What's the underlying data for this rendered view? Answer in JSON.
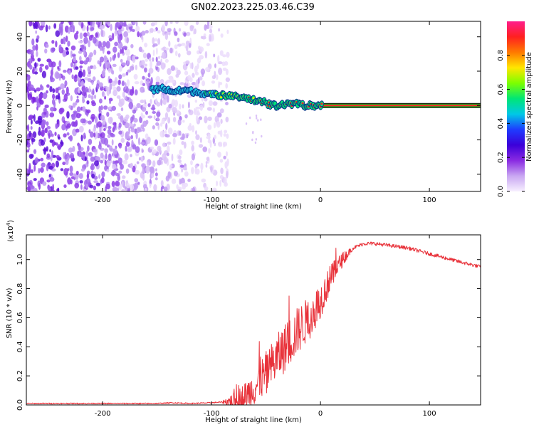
{
  "figure_title": "GN02.2023.225.03.46.C39",
  "colors": {
    "snr_line": "#e8323a",
    "spectral_line": "#1a9e1a",
    "colormap": [
      "#f7f0ff",
      "#c9a7f2",
      "#8a2be2",
      "#3b00d9",
      "#1e3cff",
      "#00c8e6",
      "#00e676",
      "#7cff00",
      "#ffe600",
      "#ff7a00",
      "#ff2020",
      "#ff1e8c"
    ]
  },
  "chart_data": [
    {
      "type": "heatmap",
      "title": "",
      "xlabel": "Height of straight line (km)",
      "ylabel": "Frequency (Hz)",
      "xlim": [
        -270,
        147
      ],
      "ylim": [
        -50,
        49
      ],
      "xticks": [
        -200,
        -100,
        0,
        100
      ],
      "xtick_labels": [
        "-200",
        "-100",
        "0",
        "100"
      ],
      "yticks": [
        -40,
        -20,
        0,
        20,
        40
      ],
      "ytick_labels": [
        "-40",
        "-20",
        "0",
        "20",
        "40"
      ],
      "noise_region": [
        -270,
        -95
      ],
      "spectral_line_points": [
        {
          "x": -155,
          "y": 9
        },
        {
          "x": -145,
          "y": 10
        },
        {
          "x": -135,
          "y": 8
        },
        {
          "x": -125,
          "y": 9
        },
        {
          "x": -115,
          "y": 8
        },
        {
          "x": -105,
          "y": 7
        },
        {
          "x": -95,
          "y": 6
        },
        {
          "x": -85,
          "y": 6
        },
        {
          "x": -75,
          "y": 5
        },
        {
          "x": -68,
          "y": 4
        },
        {
          "x": -60,
          "y": 3
        },
        {
          "x": -52,
          "y": 2
        },
        {
          "x": -45,
          "y": 0
        },
        {
          "x": -38,
          "y": 0
        },
        {
          "x": -30,
          "y": 1
        },
        {
          "x": -22,
          "y": 1
        },
        {
          "x": -15,
          "y": 0
        },
        {
          "x": -8,
          "y": 0
        },
        {
          "x": 0,
          "y": 0
        },
        {
          "x": 147,
          "y": 0
        }
      ],
      "colorbar": {
        "label": "Normalized spectral amplitude",
        "range": [
          0.0,
          1.0
        ],
        "ticks": [
          0.0,
          0.2,
          0.4,
          0.6,
          0.8
        ],
        "tick_labels": [
          "0.0",
          "0.2",
          "0.4",
          "0.6",
          "0.8"
        ]
      }
    },
    {
      "type": "line",
      "title": "",
      "xlabel": "Height of straight line (km)",
      "ylabel": "SNR (10 * v/v)",
      "y_scale_label": "(x10",
      "y_scale_exponent": "4",
      "y_scale_suffix": ")",
      "xlim": [
        -270,
        147
      ],
      "ylim": [
        0.0,
        1.17
      ],
      "xticks": [
        -200,
        -100,
        0,
        100
      ],
      "xtick_labels": [
        "-200",
        "-100",
        "0",
        "100"
      ],
      "yticks": [
        0.0,
        0.2,
        0.4,
        0.6,
        0.8,
        1.0
      ],
      "ytick_labels": [
        "0.0",
        "0.2",
        "0.4",
        "0.6",
        "0.8",
        "1.0"
      ],
      "series": [
        {
          "name": "SNR",
          "x": [
            -270,
            -240,
            -210,
            -180,
            -150,
            -135,
            -120,
            -100,
            -90,
            -80,
            -70,
            -60,
            -50,
            -40,
            -30,
            -20,
            -10,
            0,
            10,
            20,
            30,
            40,
            50,
            60,
            70,
            80,
            90,
            100,
            110,
            120,
            130,
            147
          ],
          "values": [
            0.01,
            0.01,
            0.01,
            0.01,
            0.01,
            0.015,
            0.01,
            0.015,
            0.02,
            0.03,
            0.06,
            0.12,
            0.22,
            0.32,
            0.42,
            0.52,
            0.6,
            0.72,
            0.88,
            1.0,
            1.08,
            1.11,
            1.11,
            1.1,
            1.09,
            1.08,
            1.06,
            1.04,
            1.02,
            1.0,
            0.98,
            0.95
          ]
        }
      ]
    }
  ]
}
